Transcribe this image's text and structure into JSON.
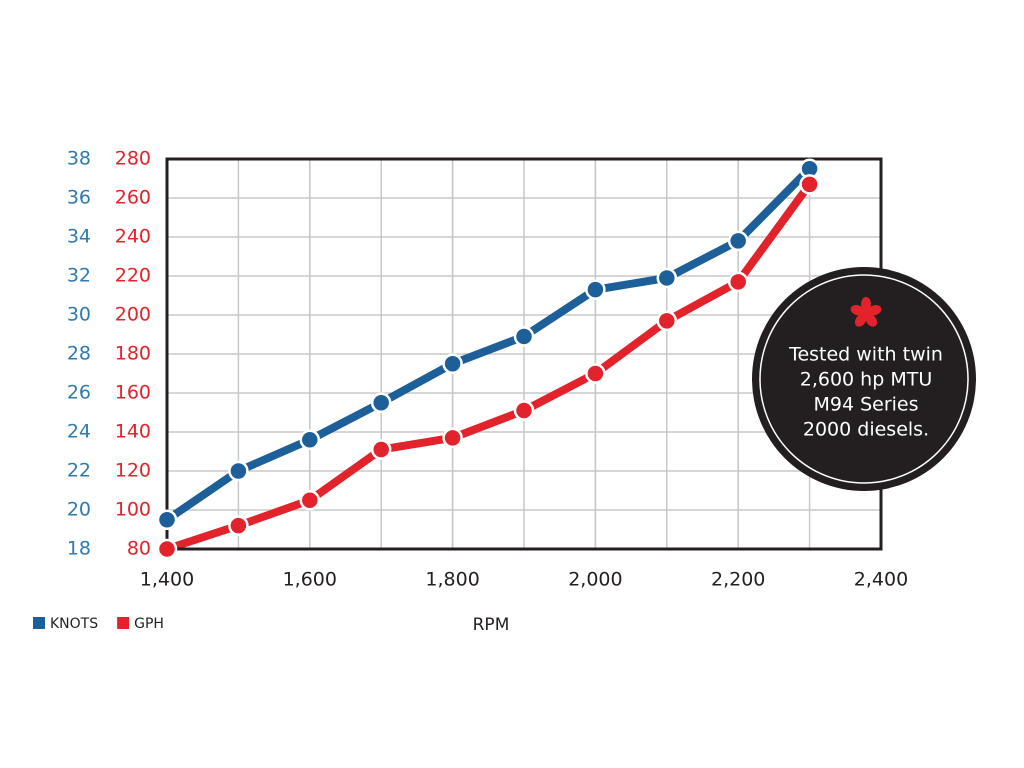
{
  "chart_data": {
    "type": "line",
    "x": [
      1400,
      1500,
      1600,
      1700,
      1800,
      1900,
      2000,
      2100,
      2200,
      2300
    ],
    "series": [
      {
        "name": "KNOTS",
        "color": "#1c5f99",
        "axis": "y",
        "values": [
          19.5,
          22,
          23.6,
          25.5,
          27.5,
          28.9,
          31.3,
          31.9,
          33.8,
          37.5
        ]
      },
      {
        "name": "GPH",
        "color": "#e3232b",
        "axis": "y2",
        "values": [
          80,
          92,
          105,
          131,
          137,
          151,
          170,
          197,
          217,
          267
        ]
      }
    ],
    "xlabel": "RPM",
    "xlim": [
      1400,
      2400
    ],
    "xticks": [
      {
        "value": 1400,
        "label": "1,400"
      },
      {
        "value": 1600,
        "label": "1,600"
      },
      {
        "value": 1800,
        "label": "1,800"
      },
      {
        "value": 2000,
        "label": "2,000"
      },
      {
        "value": 2200,
        "label": "2,200"
      },
      {
        "value": 2400,
        "label": "2,400"
      }
    ],
    "ylim": [
      18,
      38
    ],
    "yticks": [
      18,
      20,
      22,
      24,
      26,
      28,
      30,
      32,
      34,
      36,
      38
    ],
    "y2lim": [
      80,
      280
    ],
    "y2ticks": [
      80,
      100,
      120,
      140,
      160,
      180,
      200,
      220,
      240,
      260,
      280
    ],
    "grid": true,
    "legend": "bottom-left",
    "annotation": [
      "Tested with twin",
      "2,600 hp MTU",
      "M94 Series",
      "2000 diesels."
    ]
  }
}
